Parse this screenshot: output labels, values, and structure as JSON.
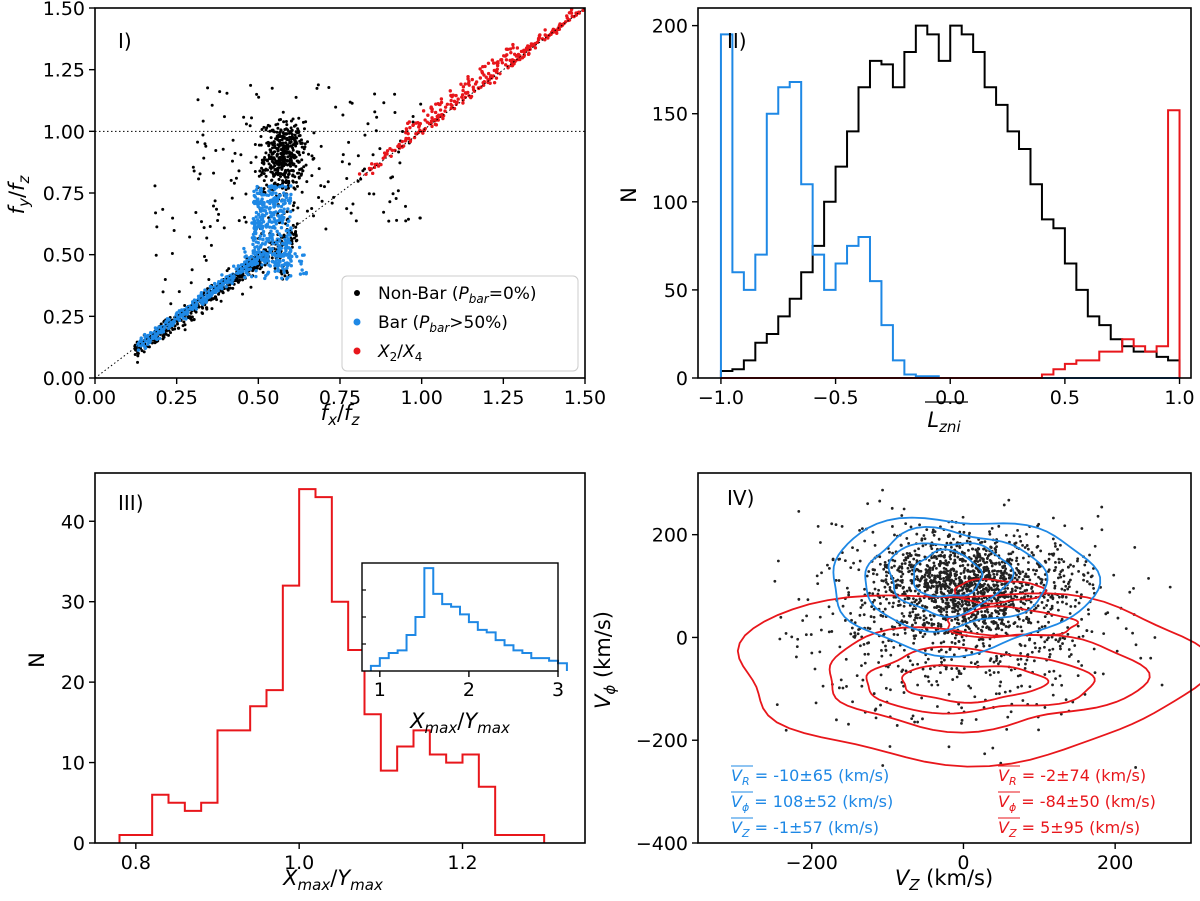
{
  "colors": {
    "black": "#000000",
    "blue": "#1e88e5",
    "red": "#e8161b"
  },
  "chart_data": [
    {
      "id": "I",
      "type": "scatter",
      "panel_label": "I)",
      "xlabel": "f_x/f_z",
      "ylabel": "f_y/f_z",
      "xlim": [
        0,
        1.5
      ],
      "ylim": [
        0,
        1.5
      ],
      "xticks": [
        "0.00",
        "0.25",
        "0.50",
        "0.75",
        "1.00",
        "1.25",
        "1.50"
      ],
      "yticks": [
        "0.00",
        "0.25",
        "0.50",
        "0.75",
        "1.00",
        "1.25",
        "1.50"
      ],
      "reference_lines": [
        {
          "type": "horizontal",
          "y": 1.0,
          "style": "dotted"
        },
        {
          "type": "diagonal",
          "from": [
            0,
            0
          ],
          "to": [
            1.5,
            1.5
          ],
          "style": "dotted"
        }
      ],
      "legend": [
        {
          "label": "Non-Bar (P_bar=0%)",
          "color": "#000000"
        },
        {
          "label": "Bar (P_bar>50%)",
          "color": "#1e88e5"
        },
        {
          "label": "X2/X4",
          "color": "#e8161b"
        }
      ],
      "series": [
        {
          "name": "Non-Bar",
          "description": "~1500 orbits along diagonal 0.1-0.6 and clustered near f_x/f_z~0.58, f_y/f_z~0.9; sparse scatter above",
          "color": "#000000"
        },
        {
          "name": "Bar",
          "description": "along diagonal 0.12-0.5, vertical plume at f_x/f_z~0.5-0.6 reaching f_y/f_z~0.8",
          "color": "#1e88e5"
        },
        {
          "name": "X2/X4",
          "description": "on diagonal from ~0.8 to 1.5",
          "color": "#e8161b"
        }
      ]
    },
    {
      "id": "II",
      "type": "histogram",
      "panel_label": "II)",
      "xlabel": "L_zni",
      "ylabel": "N",
      "xlim": [
        -1.1,
        1.05
      ],
      "ylim": [
        0,
        210
      ],
      "xticks": [
        "−1.0",
        "−0.5",
        "0.0",
        "0.5",
        "1.0"
      ],
      "yticks": [
        "0",
        "50",
        "100",
        "150",
        "200"
      ],
      "series": [
        {
          "name": "black",
          "color": "#000000",
          "bins_start": -1.0,
          "bin_width": 0.05,
          "values": [
            4,
            5,
            10,
            20,
            25,
            35,
            45,
            60,
            75,
            100,
            120,
            140,
            165,
            180,
            178,
            165,
            185,
            200,
            195,
            180,
            200,
            195,
            185,
            165,
            155,
            140,
            130,
            110,
            90,
            85,
            65,
            50,
            35,
            30,
            22,
            18,
            15,
            15,
            12,
            10
          ]
        },
        {
          "name": "blue",
          "color": "#1e88e5",
          "bins_start": -1.0,
          "bin_width": 0.05,
          "values": [
            195,
            60,
            50,
            70,
            150,
            165,
            168,
            110,
            70,
            50,
            65,
            75,
            80,
            55,
            30,
            10,
            2,
            1,
            1,
            0,
            0,
            0,
            0,
            0,
            0,
            0,
            0,
            0,
            0,
            0,
            0,
            0,
            0,
            0,
            0,
            0,
            0,
            0,
            0,
            0
          ]
        },
        {
          "name": "red",
          "color": "#e8161b",
          "bins_start": -1.0,
          "bin_width": 0.05,
          "values": [
            0,
            0,
            0,
            0,
            0,
            0,
            0,
            0,
            0,
            0,
            0,
            0,
            0,
            0,
            0,
            0,
            0,
            0,
            0,
            0,
            0,
            0,
            0,
            0,
            0,
            0,
            0,
            0,
            2,
            5,
            8,
            10,
            10,
            15,
            15,
            22,
            18,
            15,
            18,
            152
          ]
        }
      ]
    },
    {
      "id": "III",
      "type": "histogram",
      "panel_label": "III)",
      "xlabel": "X_max/Y_max",
      "ylabel": "N",
      "xlim": [
        0.75,
        1.35
      ],
      "ylim": [
        0,
        46
      ],
      "xticks": [
        "0.8",
        "1.0",
        "1.2"
      ],
      "yticks": [
        "0",
        "10",
        "20",
        "30",
        "40"
      ],
      "series": [
        {
          "name": "red",
          "color": "#e8161b",
          "bins_start": 0.78,
          "bin_width": 0.02,
          "values": [
            1,
            1,
            6,
            5,
            4,
            5,
            14,
            14,
            17,
            19,
            32,
            44,
            43,
            30,
            24,
            16,
            9,
            12,
            14,
            11,
            10,
            11,
            7,
            1,
            1,
            1
          ]
        }
      ],
      "inset": {
        "xlabel": "X_max/Y_max",
        "xlim": [
          0.8,
          3.0
        ],
        "xticks": [
          "1",
          "2",
          "3"
        ],
        "series": [
          {
            "name": "blue",
            "color": "#1e88e5",
            "bins_start": 0.9,
            "bin_width": 0.1,
            "values": [
              2,
              5,
              7,
              8,
              14,
              21,
              40,
              30,
              26,
              25,
              22,
              19,
              16,
              15,
              12,
              10,
              8,
              7,
              5,
              5,
              4,
              3
            ]
          }
        ]
      }
    },
    {
      "id": "IV",
      "type": "scatter",
      "panel_label": "IV)",
      "xlabel": "V_Z (km/s)",
      "ylabel": "V_phi (km/s)",
      "xlim": [
        -350,
        300
      ],
      "ylim": [
        -400,
        320
      ],
      "xticks": [
        "−200",
        "0",
        "200"
      ],
      "yticks": [
        "−400",
        "−200",
        "0",
        "200"
      ],
      "series": [
        {
          "name": "points",
          "color": "#000000",
          "description": "scatter centered near (0, 100) km/s"
        },
        {
          "name": "blue contours",
          "color": "#1e88e5",
          "center": [
            -1,
            108
          ],
          "sigma": [
            57,
            52
          ]
        },
        {
          "name": "red contours",
          "color": "#e8161b",
          "center": [
            5,
            -84
          ],
          "sigma": [
            95,
            50
          ]
        }
      ],
      "stats_blue": [
        "= -10±65 (km/s)",
        "= 108±52 (km/s)",
        "= -1±57 (km/s)"
      ],
      "stats_red": [
        "= -2±74 (km/s)",
        "= -84±50 (km/s)",
        "= 5±95 (km/s)"
      ],
      "stats_symbols": [
        "R",
        "ϕ",
        "Z"
      ]
    }
  ]
}
